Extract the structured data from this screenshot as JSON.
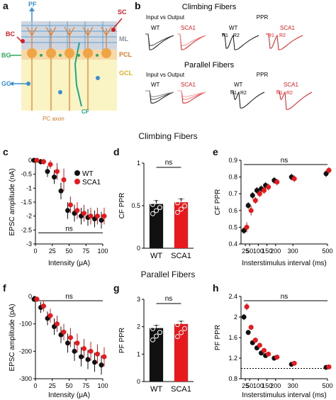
{
  "panel_labels": {
    "a": "a",
    "b": "b",
    "c": "c",
    "d": "d",
    "e": "e",
    "f": "f",
    "g": "g",
    "h": "h"
  },
  "section_titles": {
    "climbing": "Climbing Fibers",
    "parallel": "Parallel Fibers"
  },
  "diagram": {
    "labels": {
      "pf": "PF",
      "sc": "SC",
      "bc": "BC",
      "bg": "BG",
      "gc": "GC",
      "ml": "ML",
      "pcl": "PCL",
      "gcl": "GCL",
      "pc_axon": "PC axon",
      "cf": "CF"
    },
    "colors": {
      "ml_bg": "#cfd6df",
      "gcl_bg": "#faf3c4",
      "pc": "#f0a544",
      "pf": "#3a8fd0",
      "sc": "#d21f26",
      "bg": "#2faa5a",
      "cf": "#1aa88f",
      "pc_axon": "#e07a2a"
    }
  },
  "traces": {
    "cf_title": "Climbing Fibers",
    "pf_title": "Parallel Fibers",
    "io": "Input vs Output",
    "ppr": "PPR",
    "wt": "WT",
    "sca1": "SCA1",
    "r1": "R1",
    "r2": "R2",
    "colors": {
      "wt": "#111111",
      "sca1": "#e8191c"
    }
  },
  "chart_data": [
    {
      "panel": "c",
      "type": "scatter",
      "xlabel": "Intensity (μA)",
      "ylabel": "EPSC amplitude (nA)",
      "xlim": [
        0,
        100
      ],
      "ylim": [
        -3,
        0
      ],
      "xticks": [
        0,
        25,
        50,
        75,
        100
      ],
      "yticks": [
        0,
        -0.5,
        -1,
        -1.5,
        -2,
        -2.5,
        -3
      ],
      "annotation": "ns",
      "x": [
        0,
        10,
        20,
        30,
        40,
        50,
        60,
        70,
        80,
        90,
        100
      ],
      "series": [
        {
          "name": "WT",
          "color": "#111111",
          "values": [
            0,
            -0.05,
            -0.4,
            -0.6,
            -1.1,
            -1.8,
            -1.9,
            -2.0,
            -2.05,
            -2.1,
            -2.15
          ],
          "errors": [
            0.05,
            0.1,
            0.2,
            0.25,
            0.3,
            0.3,
            0.3,
            0.3,
            0.3,
            0.3,
            0.3
          ]
        },
        {
          "name": "SCA1",
          "color": "#e8191c",
          "values": [
            0,
            -0.05,
            -0.15,
            -0.4,
            -0.7,
            -1.6,
            -1.8,
            -1.9,
            -2.0,
            -2.0,
            -2.0
          ],
          "errors": [
            0.05,
            0.1,
            0.15,
            0.3,
            0.4,
            0.3,
            0.3,
            0.3,
            0.3,
            0.3,
            0.3
          ]
        }
      ]
    },
    {
      "panel": "d",
      "type": "bar",
      "ylabel": "CF PPR",
      "ylim": [
        0,
        1
      ],
      "yticks": [
        0,
        0.5,
        1
      ],
      "categories": [
        "WT",
        "SCA1"
      ],
      "values": [
        0.52,
        0.54
      ],
      "errors": [
        0.04,
        0.04
      ],
      "colors": [
        "#111111",
        "#e8191c"
      ],
      "annotation": "ns"
    },
    {
      "panel": "e",
      "type": "scatter",
      "xlabel": "Insterstimulus interval (ms)",
      "ylabel": "CF PPR",
      "xlim": [
        0,
        500
      ],
      "ylim": [
        0.4,
        0.9
      ],
      "xticks": [
        25,
        50,
        100,
        150,
        200,
        300,
        500
      ],
      "yticks": [
        0.4,
        0.5,
        0.6,
        0.7,
        0.8,
        0.9
      ],
      "annotation": "ns",
      "x": [
        25,
        50,
        75,
        100,
        125,
        150,
        200,
        300,
        500
      ],
      "series": [
        {
          "name": "WT",
          "color": "#111111",
          "values": [
            0.48,
            0.63,
            0.69,
            0.72,
            0.73,
            0.75,
            0.78,
            0.8,
            0.82
          ],
          "errors": [
            0.02,
            0.02,
            0.02,
            0.02,
            0.02,
            0.02,
            0.02,
            0.02,
            0.02
          ]
        },
        {
          "name": "SCA1",
          "color": "#e8191c",
          "values": [
            0.5,
            0.6,
            0.66,
            0.7,
            0.72,
            0.74,
            0.77,
            0.79,
            0.84
          ],
          "errors": [
            0.03,
            0.03,
            0.02,
            0.02,
            0.02,
            0.02,
            0.02,
            0.02,
            0.02
          ]
        }
      ]
    },
    {
      "panel": "f",
      "type": "scatter",
      "xlabel": "Intensity (μA)",
      "ylabel": "EPSC amplitude (pA)",
      "xlim": [
        0,
        100
      ],
      "ylim": [
        -300,
        0
      ],
      "xticks": [
        0,
        25,
        50,
        75,
        100
      ],
      "yticks": [
        0,
        -100,
        -200,
        -300
      ],
      "annotation": "ns",
      "x": [
        0,
        10,
        20,
        30,
        40,
        50,
        60,
        70,
        80,
        90,
        100
      ],
      "series": [
        {
          "name": "WT",
          "color": "#111111",
          "values": [
            -10,
            -40,
            -80,
            -110,
            -140,
            -170,
            -200,
            -220,
            -230,
            -240,
            -250
          ],
          "errors": [
            10,
            20,
            25,
            30,
            30,
            35,
            35,
            35,
            35,
            35,
            35
          ]
        },
        {
          "name": "SCA1",
          "color": "#e8191c",
          "values": [
            -10,
            -35,
            -70,
            -100,
            -130,
            -150,
            -170,
            -190,
            -200,
            -210,
            -220
          ],
          "errors": [
            10,
            20,
            25,
            30,
            30,
            35,
            35,
            35,
            35,
            35,
            35
          ]
        }
      ]
    },
    {
      "panel": "g",
      "type": "bar",
      "ylabel": "PF PPR",
      "ylim": [
        0,
        3
      ],
      "yticks": [
        0,
        1,
        2,
        3
      ],
      "categories": [
        "WT",
        "SCA1"
      ],
      "values": [
        1.95,
        2.1
      ],
      "errors": [
        0.1,
        0.1
      ],
      "colors": [
        "#111111",
        "#e8191c"
      ],
      "annotation": "ns"
    },
    {
      "panel": "h",
      "type": "scatter",
      "xlabel": "Insterstimulus interval (ms)",
      "ylabel": "PF PPR",
      "xlim": [
        0,
        500
      ],
      "ylim": [
        0.8,
        2.4
      ],
      "xticks": [
        25,
        50,
        100,
        150,
        200,
        300,
        500
      ],
      "yticks": [
        0.8,
        1.2,
        1.6,
        2.0,
        2.4
      ],
      "annotation": "ns",
      "reference_line": 1.0,
      "x": [
        25,
        50,
        75,
        100,
        125,
        150,
        200,
        300,
        500
      ],
      "series": [
        {
          "name": "WT",
          "color": "#111111",
          "values": [
            2.0,
            1.7,
            1.5,
            1.4,
            1.3,
            1.25,
            1.2,
            1.08,
            1.02
          ],
          "errors": [
            0.06,
            0.05,
            0.04,
            0.04,
            0.04,
            0.03,
            0.03,
            0.03,
            0.02
          ]
        },
        {
          "name": "SCA1",
          "color": "#e8191c",
          "values": [
            2.2,
            1.8,
            1.55,
            1.45,
            1.35,
            1.28,
            1.22,
            1.1,
            1.03
          ],
          "errors": [
            0.07,
            0.05,
            0.05,
            0.04,
            0.04,
            0.03,
            0.03,
            0.03,
            0.02
          ]
        }
      ]
    }
  ]
}
